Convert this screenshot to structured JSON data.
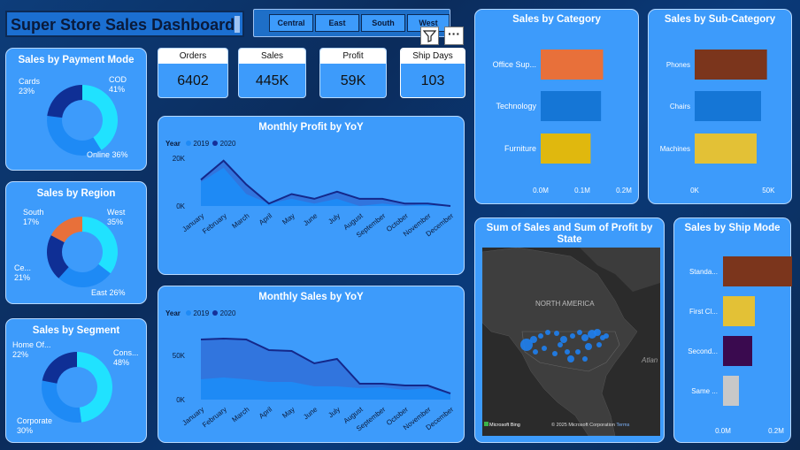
{
  "header": {
    "title": "Super Store Sales Dashboard"
  },
  "region_filter": {
    "buttons": [
      "Central",
      "East",
      "South",
      "West"
    ]
  },
  "visual_header": {
    "icons": [
      "filter-icon",
      "more-options-icon"
    ]
  },
  "kpis": [
    {
      "label": "Orders",
      "value": "6402"
    },
    {
      "label": "Sales",
      "value": "445K"
    },
    {
      "label": "Profit",
      "value": "59K"
    },
    {
      "label": "Ship Days",
      "value": "103"
    }
  ],
  "payment_mode": {
    "title": "Sales by Payment Mode",
    "labels": [
      {
        "name": "COD",
        "pct": "41%"
      },
      {
        "name": "Online",
        "pct": "36%"
      },
      {
        "name": "Cards",
        "pct": "23%"
      }
    ]
  },
  "region": {
    "title": "Sales by Region",
    "labels": [
      {
        "name": "West",
        "pct": "35%"
      },
      {
        "name": "East",
        "pct": "26%"
      },
      {
        "name": "Ce...",
        "pct": "21%"
      },
      {
        "name": "South",
        "pct": "17%"
      }
    ]
  },
  "segment": {
    "title": "Sales by Segment",
    "labels": [
      {
        "name": "Cons...",
        "pct": "48%"
      },
      {
        "name": "Corporate",
        "pct": "30%"
      },
      {
        "name": "Home Of...",
        "pct": "22%"
      }
    ]
  },
  "monthly_profit": {
    "title": "Monthly Profit by YoY",
    "legend_title": "Year",
    "legend": [
      "2019",
      "2020"
    ],
    "yticks": [
      "20K",
      "0K"
    ]
  },
  "monthly_sales": {
    "title": "Monthly Sales by YoY",
    "legend_title": "Year",
    "legend": [
      "2019",
      "2020"
    ],
    "yticks": [
      "50K",
      "0K"
    ]
  },
  "months": [
    "January",
    "February",
    "March",
    "April",
    "May",
    "June",
    "July",
    "August",
    "September",
    "October",
    "November",
    "December"
  ],
  "category": {
    "title": "Sales by Category",
    "ticks": [
      "0.0M",
      "0.1M",
      "0.2M"
    ]
  },
  "subcategory": {
    "title": "Sales by Sub-Category",
    "ticks": [
      "0K",
      "50K"
    ]
  },
  "map": {
    "title": "Sum of Sales and Sum of Profit by State",
    "region_label": "NORTH AMERICA",
    "ocean_label": "Atlan",
    "bing": "Microsoft Bing",
    "copyright": "© 2025 Microsoft Corporation",
    "terms": "Terms"
  },
  "shipmode": {
    "title": "Sales by Ship Mode",
    "ticks": [
      "0.0M",
      "0.2M"
    ]
  },
  "colors": {
    "card": "#3d9bfb",
    "orange": "#e8703a",
    "blue": "#1576d6",
    "yellow": "#e0b80e",
    "brown": "#7b351c",
    "mustard": "#e3c136",
    "purple": "#3a0a4f",
    "grey": "#c8c8c8",
    "dark_blue": "#0f2f95",
    "cyan": "#20e2ff"
  },
  "chart_data": [
    {
      "type": "pie",
      "title": "Sales by Payment Mode",
      "categories": [
        "COD",
        "Online",
        "Cards"
      ],
      "values": [
        41,
        36,
        23
      ]
    },
    {
      "type": "pie",
      "title": "Sales by Region",
      "categories": [
        "West",
        "East",
        "Ce...",
        "South"
      ],
      "values": [
        35,
        26,
        21,
        17
      ]
    },
    {
      "type": "pie",
      "title": "Sales by Segment",
      "categories": [
        "Cons...",
        "Corporate",
        "Home Of..."
      ],
      "values": [
        48,
        30,
        22
      ]
    },
    {
      "type": "area",
      "title": "Monthly Profit by YoY",
      "x": [
        "January",
        "February",
        "March",
        "April",
        "May",
        "June",
        "July",
        "August",
        "September",
        "October",
        "November",
        "December"
      ],
      "series": [
        {
          "name": "2019",
          "values": [
            10000,
            16000,
            5000,
            1000,
            3000,
            1000,
            3000,
            0,
            1000,
            0,
            1000,
            0
          ]
        },
        {
          "name": "2020",
          "values": [
            11000,
            19000,
            9000,
            1000,
            5000,
            3000,
            6000,
            3000,
            3000,
            1000,
            1000,
            0
          ]
        }
      ],
      "ylim": [
        0,
        20000
      ]
    },
    {
      "type": "area",
      "title": "Monthly Sales by YoY",
      "x": [
        "January",
        "February",
        "March",
        "April",
        "May",
        "June",
        "July",
        "August",
        "September",
        "October",
        "November",
        "December"
      ],
      "series": [
        {
          "name": "2019",
          "values": [
            23000,
            25000,
            23000,
            20000,
            20000,
            15000,
            15000,
            13000,
            14000,
            11000,
            13000,
            7000
          ]
        },
        {
          "name": "2020",
          "values": [
            68000,
            69000,
            68000,
            56000,
            55000,
            41000,
            46000,
            18000,
            18000,
            16000,
            16000,
            7000
          ]
        }
      ],
      "ylim": [
        0,
        70000
      ]
    },
    {
      "type": "bar",
      "title": "Sales by Category",
      "categories": [
        "Office Sup...",
        "Technology",
        "Furniture"
      ],
      "values": [
        0.15,
        0.145,
        0.12
      ],
      "xlim": [
        0,
        0.2
      ]
    },
    {
      "type": "bar",
      "title": "Sales by Sub-Category",
      "categories": [
        "Phones",
        "Chairs",
        "Machines"
      ],
      "values": [
        49000,
        45000,
        42000
      ],
      "xlim": [
        0,
        60000
      ]
    },
    {
      "type": "bar",
      "title": "Sales by Ship Mode",
      "categories": [
        "Standa...",
        "First Cl...",
        "Second...",
        "Same ..."
      ],
      "values": [
        0.27,
        0.12,
        0.11,
        0.06
      ],
      "xlim": [
        0,
        0.3
      ]
    }
  ]
}
